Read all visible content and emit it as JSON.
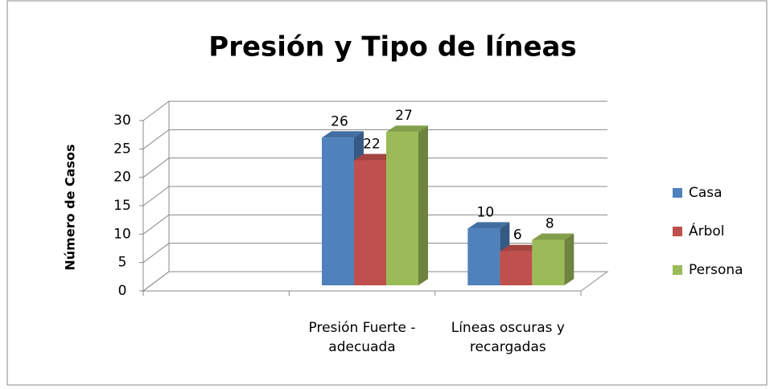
{
  "chart_data": {
    "type": "bar3d",
    "title": "Presión y Tipo de líneas",
    "y_label": "Número de Casos",
    "categories": [
      null,
      "Presión Fuerte - adecuada",
      "Líneas oscuras y recargadas"
    ],
    "series": [
      {
        "name": "Casa",
        "color": "#4f81bd",
        "values": [
          null,
          26,
          10
        ]
      },
      {
        "name": "Árbol",
        "color": "#c0504d",
        "values": [
          null,
          22,
          6
        ]
      },
      {
        "name": "Persona",
        "color": "#9bbb59",
        "values": [
          null,
          27,
          8
        ]
      }
    ],
    "ylim": [
      0,
      30
    ],
    "yticks": [
      0,
      5,
      10,
      15,
      20,
      25,
      30
    ],
    "grid": true,
    "legend": "right"
  }
}
